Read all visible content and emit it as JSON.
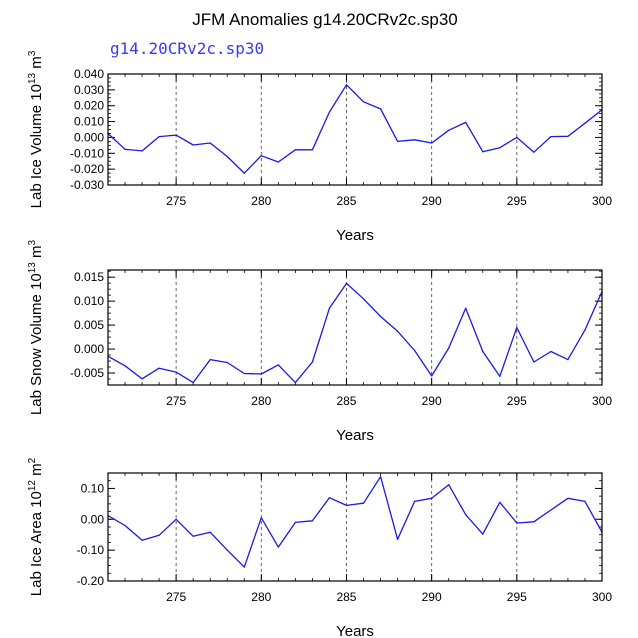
{
  "title": "JFM Anomalies g14.20CRv2c.sp30",
  "subtitle": "g14.20CRv2c.sp30",
  "colors": {
    "line": "#1a1ae6",
    "axis": "#000000",
    "grid": "#555555",
    "subtitle": "#3a3af0"
  },
  "chart_data": [
    {
      "type": "line",
      "title": "",
      "xlabel": "Years",
      "ylabel": {
        "prefix": "Lab Ice Volume 10",
        "exp": "13",
        "unit": " m",
        "unit_exp": "3"
      },
      "xlim": [
        271,
        300
      ],
      "ylim": [
        -0.03,
        0.04
      ],
      "xticks": [
        275,
        280,
        285,
        290,
        295,
        300
      ],
      "xtick_labels": [
        "275",
        "280",
        "285",
        "290",
        "295",
        "300"
      ],
      "yticks": [
        -0.03,
        -0.02,
        -0.01,
        0.0,
        0.01,
        0.02,
        0.03,
        0.04
      ],
      "ytick_labels": [
        "-0.030",
        "-0.020",
        "-0.010",
        "0.000",
        "0.010",
        "0.020",
        "0.030",
        "0.040"
      ],
      "gridlines_x": [
        275,
        280,
        285,
        290,
        295
      ],
      "x": [
        271,
        272,
        273,
        274,
        275,
        276,
        277,
        278,
        279,
        280,
        281,
        282,
        283,
        284,
        285,
        286,
        287,
        288,
        289,
        290,
        291,
        292,
        293,
        294,
        295,
        296,
        297,
        298,
        299,
        300
      ],
      "series": [
        {
          "name": "g14.20CRv2c.sp30",
          "values": [
            0.0025,
            -0.0075,
            -0.0085,
            0.0005,
            0.0015,
            -0.0048,
            -0.0035,
            -0.012,
            -0.0225,
            -0.0115,
            -0.0155,
            -0.0078,
            -0.0078,
            0.016,
            0.0332,
            0.0225,
            0.018,
            -0.0025,
            -0.0015,
            -0.0035,
            0.0045,
            0.0095,
            -0.009,
            -0.0065,
            0.0,
            -0.0093,
            0.0005,
            0.0007,
            0.009,
            0.0175
          ]
        }
      ]
    },
    {
      "type": "line",
      "title": "",
      "xlabel": "Years",
      "ylabel": {
        "prefix": "Lab Snow Volume 10",
        "exp": "13",
        "unit": " m",
        "unit_exp": "3"
      },
      "xlim": [
        271,
        300
      ],
      "ylim": [
        -0.0075,
        0.0165
      ],
      "xticks": [
        275,
        280,
        285,
        290,
        295,
        300
      ],
      "xtick_labels": [
        "275",
        "280",
        "285",
        "290",
        "295",
        "300"
      ],
      "yticks": [
        -0.005,
        0.0,
        0.005,
        0.01,
        0.015
      ],
      "ytick_labels": [
        "-0.005",
        "0.000",
        "0.005",
        "0.010",
        "0.015"
      ],
      "gridlines_x": [
        275,
        280,
        285,
        290,
        295
      ],
      "x": [
        271,
        272,
        273,
        274,
        275,
        276,
        277,
        278,
        279,
        280,
        281,
        282,
        283,
        284,
        285,
        286,
        287,
        288,
        289,
        290,
        291,
        292,
        293,
        294,
        295,
        296,
        297,
        298,
        299,
        300
      ],
      "series": [
        {
          "name": "g14.20CRv2c.sp30",
          "values": [
            -0.0015,
            -0.0035,
            -0.0062,
            -0.004,
            -0.0048,
            -0.007,
            -0.0022,
            -0.0028,
            -0.0051,
            -0.0052,
            -0.0033,
            -0.007,
            -0.0027,
            0.0085,
            0.0137,
            0.0105,
            0.0068,
            0.0037,
            -0.0003,
            -0.0056,
            0.0002,
            0.0085,
            -0.0005,
            -0.0057,
            0.0045,
            -0.0027,
            -0.0005,
            -0.0022,
            0.004,
            0.012
          ]
        }
      ]
    },
    {
      "type": "line",
      "title": "",
      "xlabel": "Years",
      "ylabel": {
        "prefix": "Lab Ice Area 10",
        "exp": "12",
        "unit": " m",
        "unit_exp": "2"
      },
      "xlim": [
        271,
        300
      ],
      "ylim": [
        -0.2,
        0.15
      ],
      "xticks": [
        275,
        280,
        285,
        290,
        295,
        300
      ],
      "xtick_labels": [
        "275",
        "280",
        "285",
        "290",
        "295",
        "300"
      ],
      "yticks": [
        -0.2,
        -0.1,
        0.0,
        0.1
      ],
      "ytick_labels": [
        "-0.20",
        "-0.10",
        "0.00",
        "0.10"
      ],
      "gridlines_x": [
        275,
        280,
        285,
        290,
        295
      ],
      "x": [
        271,
        272,
        273,
        274,
        275,
        276,
        277,
        278,
        279,
        280,
        281,
        282,
        283,
        284,
        285,
        286,
        287,
        288,
        289,
        290,
        291,
        292,
        293,
        294,
        295,
        296,
        297,
        298,
        299,
        300
      ],
      "series": [
        {
          "name": "g14.20CRv2c.sp30",
          "values": [
            0.012,
            -0.02,
            -0.068,
            -0.052,
            0.0,
            -0.055,
            -0.042,
            -0.1,
            -0.155,
            0.005,
            -0.09,
            -0.01,
            -0.005,
            0.07,
            0.045,
            0.052,
            0.138,
            -0.065,
            0.058,
            0.068,
            0.112,
            0.015,
            -0.048,
            0.055,
            -0.012,
            -0.008,
            0.03,
            0.068,
            0.058,
            -0.042
          ]
        }
      ]
    }
  ]
}
